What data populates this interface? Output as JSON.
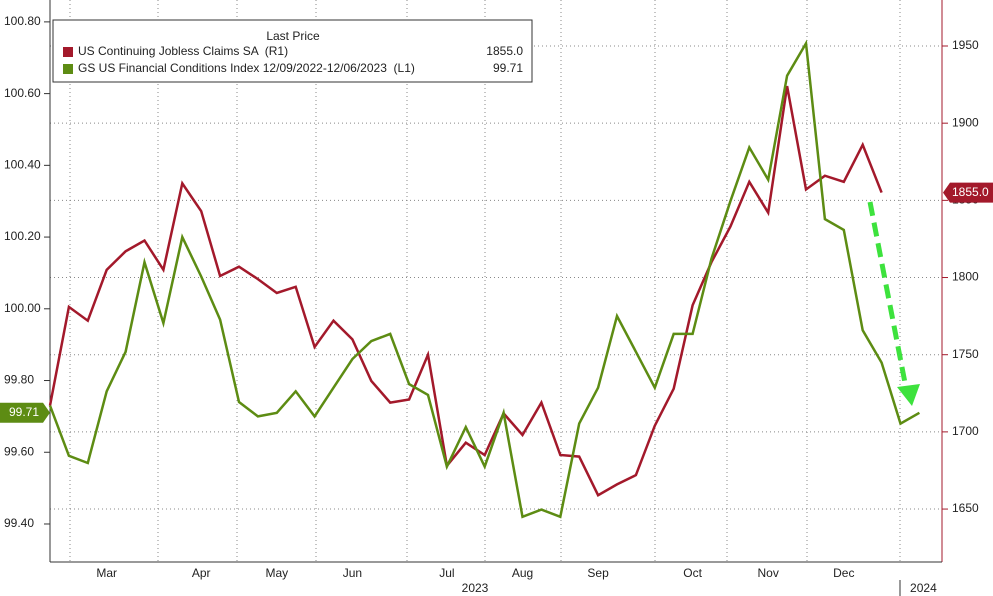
{
  "chart_data": {
    "type": "line",
    "legend_title": "Last Price",
    "categories": [
      null,
      null,
      null,
      "Mar",
      null,
      null,
      null,
      null,
      "Apr",
      null,
      null,
      null,
      "May",
      null,
      null,
      null,
      "Jun",
      null,
      null,
      null,
      null,
      "Jul",
      null,
      null,
      null,
      "Aug",
      null,
      null,
      null,
      "Sep",
      null,
      null,
      null,
      null,
      "Oct",
      null,
      null,
      null,
      "Nov",
      null,
      null,
      null,
      "Dec",
      null,
      null,
      null,
      "2024"
    ],
    "year_label": "2023",
    "series": [
      {
        "name": "US Continuing Jobless Claims SA  (R1)",
        "color": "#a3192b",
        "axis": "y2",
        "last_value_label": "1855.0",
        "values": [
          1717,
          1781,
          1772,
          1805,
          1817,
          1824,
          1805,
          1861,
          1843,
          1801,
          1807,
          1799,
          1790,
          1794,
          1755,
          1772,
          1760,
          1733,
          1719,
          1721,
          1750,
          1678,
          1693,
          1685,
          1712,
          1698,
          1719,
          1685,
          1684,
          1659,
          1666,
          1672,
          1704,
          1728,
          1782,
          1810,
          1833,
          1862,
          1842,
          1924,
          1857,
          1866,
          1862,
          1886,
          1855,
          null,
          null
        ]
      },
      {
        "name": "GS US Financial Conditions Index 12/09/2022-12/06/2023  (L1)",
        "color": "#5d8c13",
        "axis": "y",
        "last_value_label": "99.71",
        "values": [
          99.73,
          99.59,
          99.57,
          99.77,
          99.88,
          100.13,
          99.96,
          100.2,
          100.09,
          99.97,
          99.74,
          99.7,
          99.71,
          99.77,
          99.7,
          99.78,
          99.86,
          99.91,
          99.93,
          99.79,
          99.76,
          99.56,
          99.67,
          99.56,
          99.71,
          99.42,
          99.44,
          99.42,
          99.68,
          99.78,
          99.98,
          99.88,
          99.78,
          99.93,
          99.93,
          100.14,
          100.3,
          100.45,
          100.36,
          100.65,
          100.74,
          100.25,
          100.22,
          99.94,
          99.85,
          99.68,
          99.71
        ]
      }
    ],
    "ylim": [
      99.294,
      100.861
    ],
    "yticks": [
      {
        "value": 99.4,
        "label": "99.40"
      },
      {
        "value": 99.6,
        "label": "99.60"
      },
      {
        "value": 99.8,
        "label": "99.80"
      },
      {
        "value": 100,
        "label": "100.00"
      },
      {
        "value": 100.2,
        "label": "100.20"
      },
      {
        "value": 100.4,
        "label": "100.40"
      },
      {
        "value": 100.6,
        "label": "100.60"
      },
      {
        "value": 100.8,
        "label": "100.80"
      }
    ],
    "y2lim": [
      1615.7,
      1979.8
    ],
    "y2ticks": [
      1650,
      1700,
      1750,
      1800,
      1850,
      1900,
      1950
    ],
    "grid": true
  }
}
